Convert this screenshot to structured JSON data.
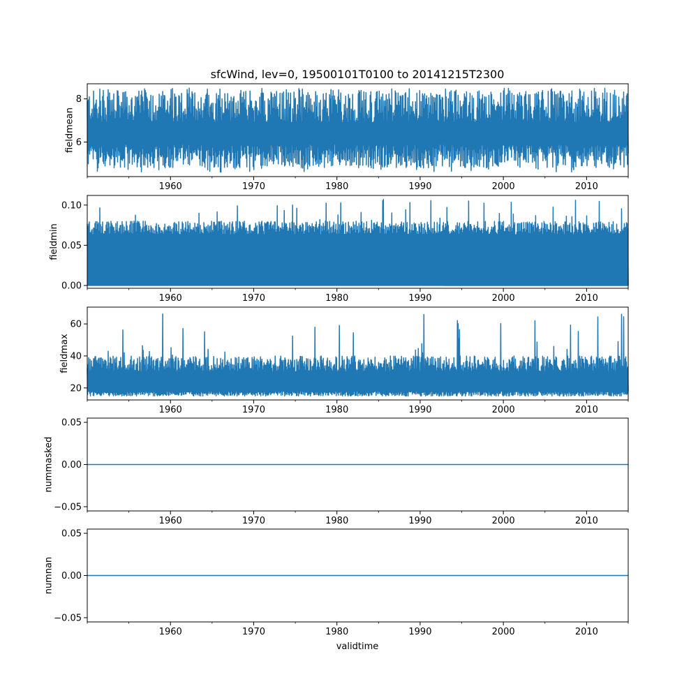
{
  "figure": {
    "title": "sfcWind, lev=0, 19500101T0100 to 20141215T2300",
    "xlabel": "validtime"
  },
  "chart_data": [
    {
      "type": "line",
      "id": "fieldmean",
      "ylabel": "fieldmean",
      "xlim": [
        1950.0,
        2015.0
      ],
      "ylim": [
        4.4,
        8.7
      ],
      "y_ticks": [
        6,
        8
      ],
      "y_tick_labels": [
        "6",
        "8"
      ],
      "x_ticks": [
        1960,
        1970,
        1980,
        1990,
        2000,
        2010
      ],
      "x_tick_labels": [
        "1960",
        "1970",
        "1980",
        "1990",
        "2000",
        "2010"
      ],
      "series": [
        {
          "color": "#1f77b4",
          "low_range": [
            4.8,
            5.9
          ],
          "high_range": [
            6.9,
            8.4
          ],
          "min": 4.6,
          "max": 8.5
        }
      ]
    },
    {
      "type": "line",
      "id": "fieldmin",
      "ylabel": "fieldmin",
      "xlim": [
        1950.0,
        2015.0
      ],
      "ylim": [
        -0.0035,
        0.112
      ],
      "y_ticks": [
        0.0,
        0.05,
        0.1
      ],
      "y_tick_labels": [
        "0.00",
        "0.05",
        "0.10"
      ],
      "x_ticks": [
        1960,
        1970,
        1980,
        1990,
        2000,
        2010
      ],
      "x_tick_labels": [
        "1960",
        "1970",
        "1980",
        "1990",
        "2000",
        "2010"
      ],
      "series": [
        {
          "color": "#1f77b4",
          "low_range": [
            0.0,
            0.0
          ],
          "high_range": [
            0.063,
            0.08
          ],
          "min": 0.0,
          "max": 0.107
        }
      ]
    },
    {
      "type": "line",
      "id": "fieldmax",
      "ylabel": "fieldmax",
      "xlim": [
        1950.0,
        2015.0
      ],
      "ylim": [
        12.5,
        70.5
      ],
      "y_ticks": [
        20,
        40,
        60
      ],
      "y_tick_labels": [
        "20",
        "40",
        "60"
      ],
      "x_ticks": [
        1960,
        1970,
        1980,
        1990,
        2000,
        2010
      ],
      "x_tick_labels": [
        "1960",
        "1970",
        "1980",
        "1990",
        "2000",
        "2010"
      ],
      "series": [
        {
          "color": "#1f77b4",
          "low_range": [
            15,
            18
          ],
          "high_range": [
            30,
            40
          ],
          "min": 15,
          "max": 67
        }
      ]
    },
    {
      "type": "line",
      "id": "nummasked",
      "ylabel": "nummasked",
      "xlim": [
        1950.0,
        2015.0
      ],
      "ylim": [
        -0.055,
        0.055
      ],
      "y_ticks": [
        -0.05,
        0.0,
        0.05
      ],
      "y_tick_labels": [
        "−0.05",
        "0.00",
        "0.05"
      ],
      "x_ticks": [
        1960,
        1970,
        1980,
        1990,
        2000,
        2010
      ],
      "x_tick_labels": [
        "1960",
        "1970",
        "1980",
        "1990",
        "2000",
        "2010"
      ],
      "series": [
        {
          "color": "#1f77b4",
          "constant": 0.0
        }
      ]
    },
    {
      "type": "line",
      "id": "numnan",
      "ylabel": "numnan",
      "xlim": [
        1950.0,
        2015.0
      ],
      "ylim": [
        -0.055,
        0.055
      ],
      "y_ticks": [
        -0.05,
        0.0,
        0.05
      ],
      "y_tick_labels": [
        "−0.05",
        "0.00",
        "0.05"
      ],
      "x_ticks": [
        1960,
        1970,
        1980,
        1990,
        2000,
        2010
      ],
      "x_tick_labels": [
        "1960",
        "1970",
        "1980",
        "1990",
        "2000",
        "2010"
      ],
      "series": [
        {
          "color": "#1f77b4",
          "constant": 0.0
        }
      ]
    }
  ]
}
